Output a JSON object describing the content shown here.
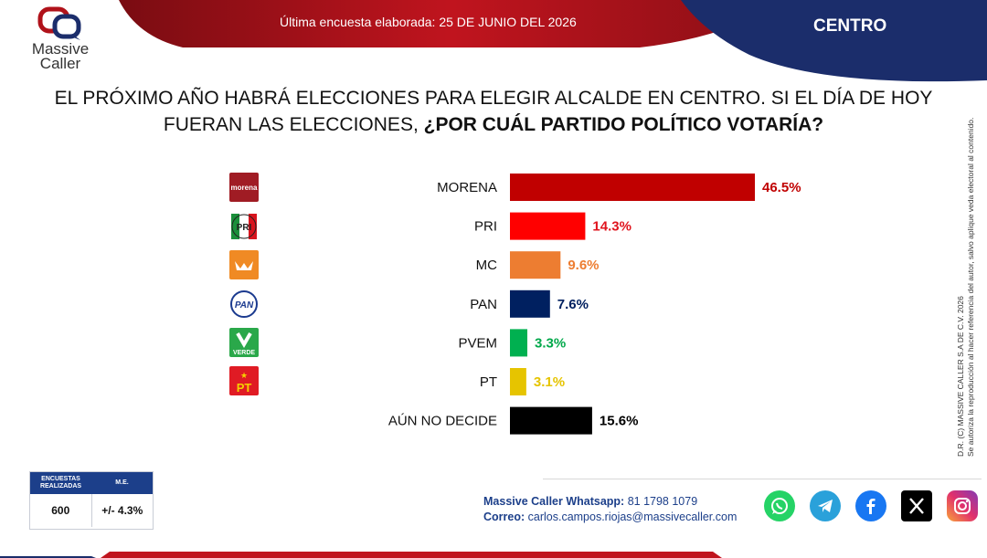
{
  "header": {
    "logo_name": "Massive",
    "logo_name2": "Caller",
    "survey_date": "Última encuesta elaborada: 25 DE JUNIO DEL 2026",
    "region": "CENTRO",
    "colors": {
      "red": "#c0141e",
      "navy": "#1b2d6b"
    }
  },
  "question": {
    "part1": "EL PRÓXIMO AÑO HABRÁ ELECCIONES PARA ELEGIR ALCALDE EN CENTRO. SI EL DÍA DE HOY",
    "part2": "FUERAN LAS ELECCIONES, ",
    "part3": "¿POR CUÁL PARTIDO POLÍTICO VOTARÍA?"
  },
  "chart_data": {
    "type": "bar",
    "orientation": "horizontal",
    "categories": [
      "MORENA",
      "PRI",
      "MC",
      "PAN",
      "PVEM",
      "PT",
      "AÚN NO DECIDE"
    ],
    "values": [
      46.5,
      14.3,
      9.6,
      7.6,
      3.3,
      3.1,
      15.6
    ],
    "labels": [
      "46.5%",
      "14.3%",
      "9.6%",
      "7.6%",
      "3.3%",
      "3.1%",
      "15.6%"
    ],
    "colors": [
      "#c00000",
      "#ff0000",
      "#ed7d31",
      "#002060",
      "#00b050",
      "#e6c400",
      "#000000"
    ],
    "label_colors": [
      "#c00000",
      "#e0141e",
      "#ed7d31",
      "#002060",
      "#00a84a",
      "#e6c400",
      "#000000"
    ],
    "xlim": [
      0,
      50
    ]
  },
  "party_logos": [
    {
      "icon": "morena-logo-icon",
      "text": "morena"
    },
    {
      "icon": "pri-logo-icon",
      "text": "PRI"
    },
    {
      "icon": "mc-logo-icon",
      "text": ""
    },
    {
      "icon": "pan-logo-icon",
      "text": "PAN"
    },
    {
      "icon": "pvem-logo-icon",
      "text": "VERDE"
    },
    {
      "icon": "pt-logo-icon",
      "text": "PT"
    }
  ],
  "stats": {
    "col1_header": "ENCUESTAS REALIZADAS",
    "col2_header": "M.E.",
    "col1_value": "600",
    "col2_value": "+/- 4.3%"
  },
  "contact": {
    "whatsapp_label": "Massive Caller Whatsapp:",
    "whatsapp_number": " 81 1798 1079",
    "email_label": "Correo:",
    "email": " carlos.campos.riojas@massivecaller.com"
  },
  "socials": [
    "whatsapp-icon",
    "telegram-icon",
    "facebook-icon",
    "x-icon",
    "instagram-icon"
  ],
  "credit": {
    "line1": "D.R. (C) MASSIVE CALLER S.A DE C.V. 2026",
    "line2": "Se autoriza la reproducción al hacer referencia del autor, salvo aplique veda electoral al contenido."
  }
}
